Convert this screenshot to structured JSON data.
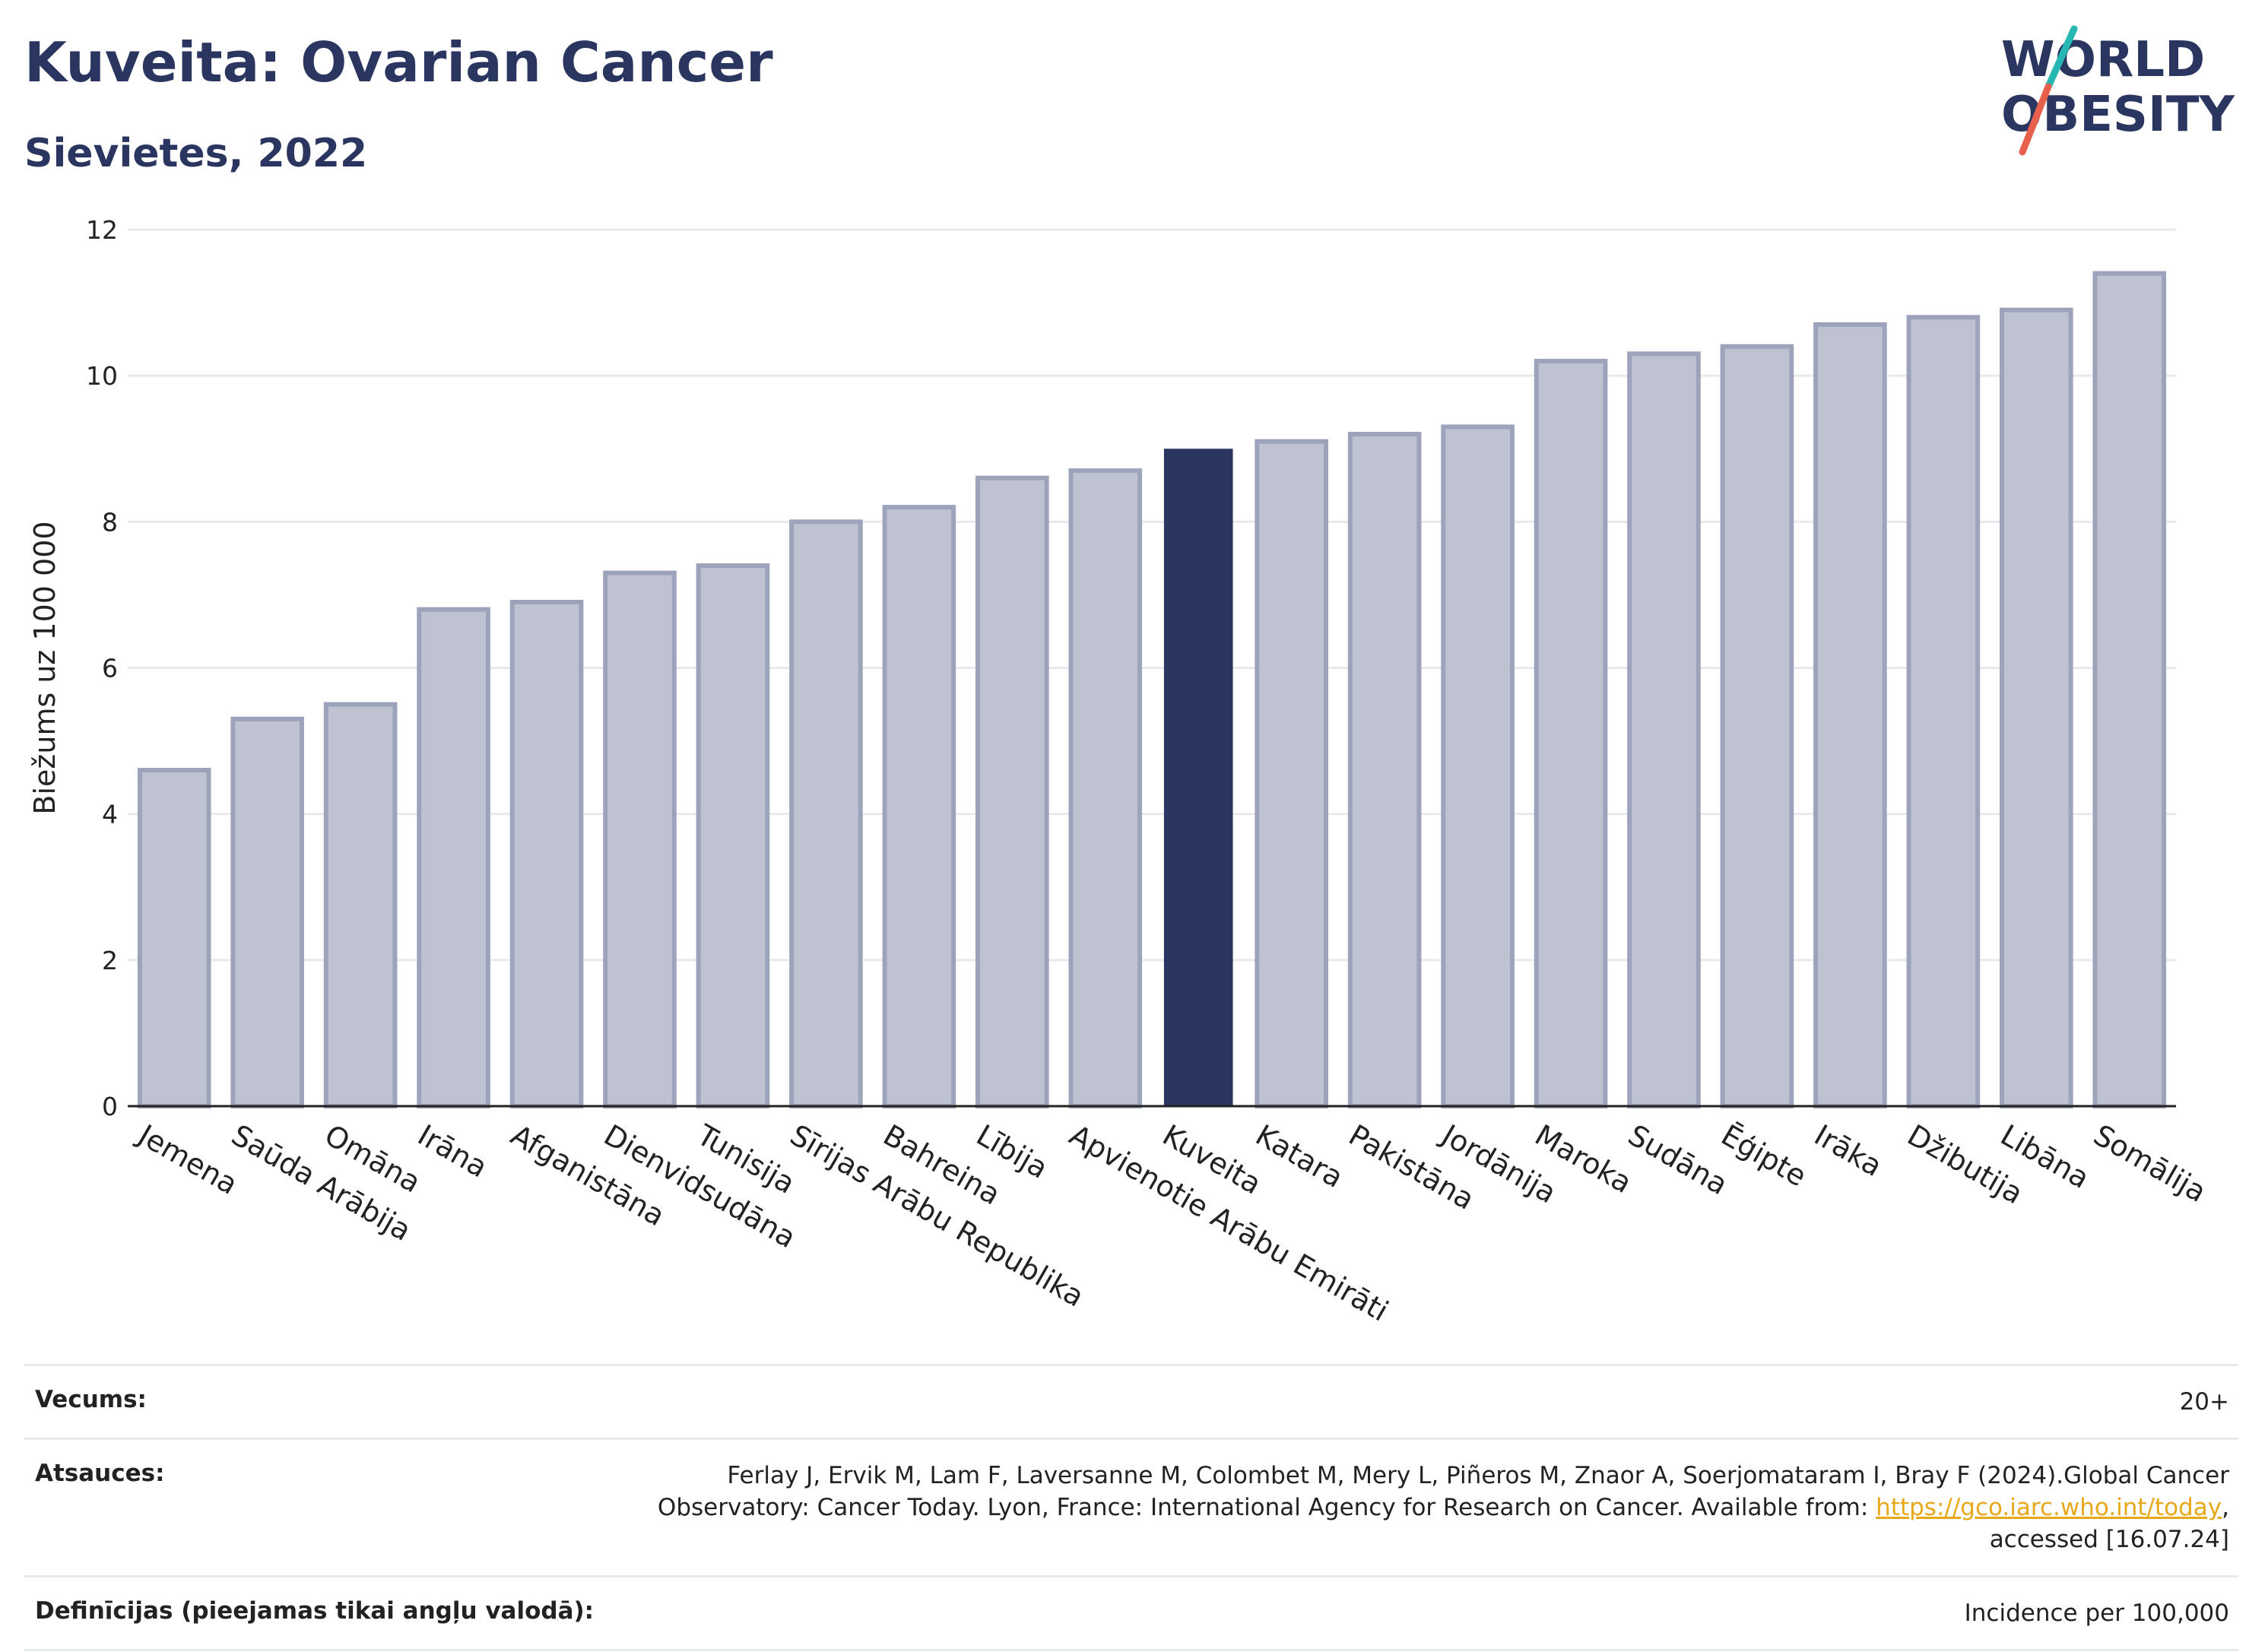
{
  "header": {
    "title": "Kuveita: Ovarian Cancer",
    "subtitle": "Sievietes, 2022"
  },
  "logo": {
    "line1": "WORLD",
    "line2": "OBESITY",
    "colors": {
      "text": "#2a3560",
      "slash_teal": "#27b7b3",
      "slash_red": "#e8604c"
    }
  },
  "chart_data": {
    "type": "bar",
    "title": "Kuveita: Ovarian Cancer",
    "subtitle": "Sievietes, 2022",
    "xlabel": "",
    "ylabel": "Biežums uz 100 000",
    "ylim": [
      0,
      12
    ],
    "yticks": [
      0,
      2,
      4,
      6,
      8,
      10,
      12
    ],
    "grid": true,
    "highlight": "Kuveita",
    "colors": {
      "bar": "#bfc2d0",
      "bar_border": "#9da3bb",
      "highlight": "#2a3560"
    },
    "categories": [
      "Jemena",
      "Saūda Arābija",
      "Omāna",
      "Irāna",
      "Afganistāna",
      "Dienvidsudāna",
      "Tunisija",
      "Sīrijas Arābu Republika",
      "Bahreina",
      "Lībija",
      "Apvienotie Arābu Emirāti",
      "Kuveita",
      "Katara",
      "Pakistāna",
      "Jordānija",
      "Maroka",
      "Sudāna",
      "Ēģipte",
      "Irāka",
      "Džibutija",
      "Libāna",
      "Somālija"
    ],
    "values": [
      4.6,
      5.3,
      5.5,
      6.8,
      6.9,
      7.3,
      7.4,
      8.0,
      8.2,
      8.6,
      8.7,
      9.0,
      9.1,
      9.2,
      9.3,
      10.2,
      10.3,
      10.4,
      10.7,
      10.8,
      10.9,
      11.4
    ]
  },
  "footer": {
    "age_label": "Vecums:",
    "age_value": "20+",
    "refs_label": "Atsauces:",
    "refs_line1": "Ferlay J, Ervik M, Lam F, Laversanne M, Colombet M, Mery L, Piñeros M, Znaor A, Soerjomataram I, Bray F (2024).Global Cancer",
    "refs_line2_pre": "Observatory: Cancer Today. Lyon, France: International Agency for Research on Cancer. Available from: ",
    "refs_link": "https://gco.iarc.who.int/today",
    "refs_line2_post": ",",
    "refs_line3": "accessed [16.07.24]",
    "def_label": "Definīcijas (pieejamas tikai angļu valodā):",
    "def_value": "Incidence per 100,000"
  }
}
